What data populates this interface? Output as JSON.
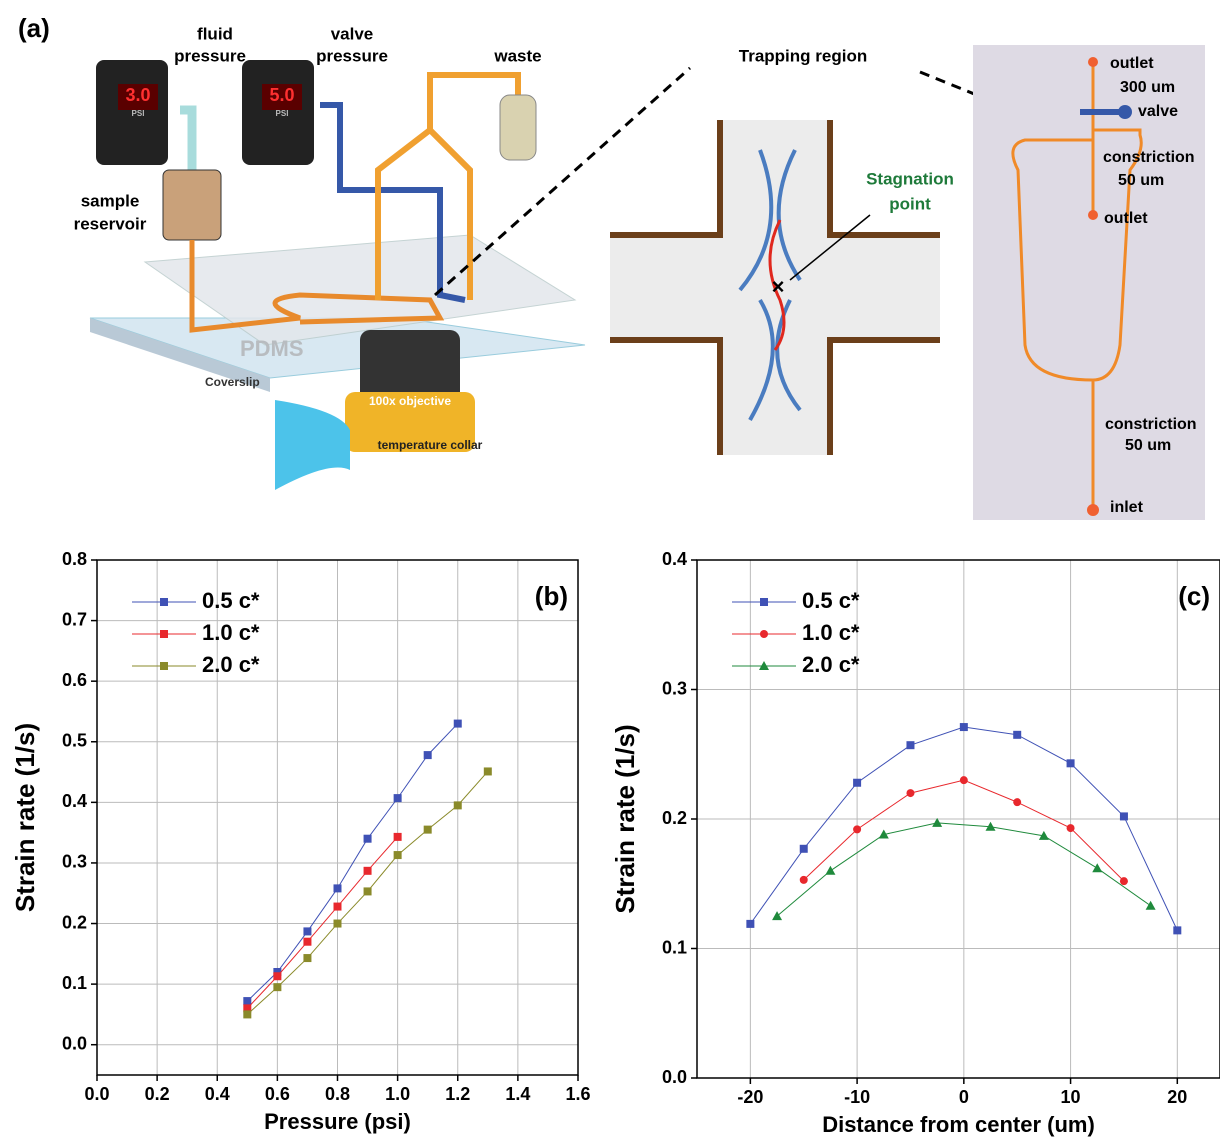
{
  "diagram": {
    "panel_label": "(a)",
    "fluid_pressure": [
      "fluid",
      "pressure"
    ],
    "valve_pressure": [
      "valve",
      "pressure"
    ],
    "waste": "waste",
    "sample_reservoir": [
      "sample",
      "reservoir"
    ],
    "gauge_1": "3.0",
    "gauge_2": "5.0",
    "gauge_unit": "PSI",
    "pdms": "PDMS",
    "coverslip": "Coverslip",
    "objective": "100x objective",
    "collar": "temperature collar",
    "trapping_region": "Trapping region",
    "stagnation_point": [
      "Stagnation",
      "point"
    ],
    "chip_labels": [
      "outlet",
      "300 um",
      "valve",
      "constriction",
      "50 um",
      "outlet",
      "constriction",
      "50 um",
      "inlet"
    ]
  },
  "chart_data": [
    {
      "type": "line",
      "panel_label": "(b)",
      "x_label": "Pressure (psi)",
      "y_label": "Strain rate (1/s)",
      "xlim": [
        0,
        1.6
      ],
      "ylim": [
        -0.05,
        0.8
      ],
      "xticks": [
        {
          "value": 0,
          "label": "0.0"
        },
        0.2,
        0.4,
        0.6,
        0.8,
        {
          "value": 1,
          "label": "1.0"
        },
        1.2,
        1.4,
        1.6
      ],
      "yticks": [
        {
          "value": 0,
          "label": "0.0"
        },
        0.1,
        0.2,
        0.3,
        0.4,
        0.5,
        0.6,
        0.7,
        0.8
      ],
      "grid": true,
      "legend": "top-left",
      "series": [
        {
          "name": "0.5 c*",
          "color": "#3f51b5",
          "marker": "square",
          "x": [
            0.5,
            0.6,
            0.7,
            0.8,
            0.9,
            1,
            1.1,
            1.2
          ],
          "values": [
            0.072,
            0.12,
            0.187,
            0.258,
            0.34,
            0.407,
            0.478,
            0.53
          ]
        },
        {
          "name": "1.0 c*",
          "color": "#e8282d",
          "marker": "square",
          "x": [
            0.5,
            0.6,
            0.7,
            0.8,
            0.9,
            1
          ],
          "values": [
            0.06,
            0.113,
            0.17,
            0.228,
            0.287,
            0.343
          ]
        },
        {
          "name": "2.0 c*",
          "color": "#8a8a2a",
          "marker": "square",
          "x": [
            0.5,
            0.6,
            0.7,
            0.8,
            0.9,
            1,
            1.1,
            1.2,
            1.3
          ],
          "values": [
            0.05,
            0.095,
            0.143,
            0.2,
            0.253,
            0.313,
            0.355,
            0.395,
            0.451
          ]
        }
      ]
    },
    {
      "type": "line",
      "panel_label": "(c)",
      "x_label": "Distance from center (um)",
      "y_label": "Strain rate (1/s)",
      "xlim": [
        -25,
        24
      ],
      "ylim": [
        0,
        0.4
      ],
      "xticks": [
        -20,
        -10,
        0,
        10,
        20
      ],
      "yticks": [
        {
          "value": 0,
          "label": "0.0"
        },
        0.1,
        0.2,
        0.3,
        0.4
      ],
      "grid": true,
      "legend": "top-left",
      "series": [
        {
          "name": "0.5 c*",
          "color": "#3f51b5",
          "marker": "square",
          "x": [
            -20,
            -15,
            -10,
            -5,
            0,
            5,
            10,
            15,
            20
          ],
          "values": [
            0.119,
            0.177,
            0.228,
            0.257,
            0.271,
            0.265,
            0.243,
            0.202,
            0.114
          ]
        },
        {
          "name": "1.0 c*",
          "color": "#e8282d",
          "marker": "circle",
          "x": [
            -15,
            -10,
            -5,
            0,
            5,
            10,
            15
          ],
          "values": [
            0.153,
            0.192,
            0.22,
            0.23,
            0.213,
            0.193,
            0.152
          ]
        },
        {
          "name": "2.0 c*",
          "color": "#1f8a3c",
          "marker": "triangle",
          "x": [
            -17.5,
            -12.5,
            -7.5,
            -2.5,
            2.5,
            7.5,
            12.5,
            17.5
          ],
          "values": [
            0.125,
            0.16,
            0.188,
            0.197,
            0.194,
            0.187,
            0.162,
            0.133
          ]
        }
      ]
    }
  ]
}
